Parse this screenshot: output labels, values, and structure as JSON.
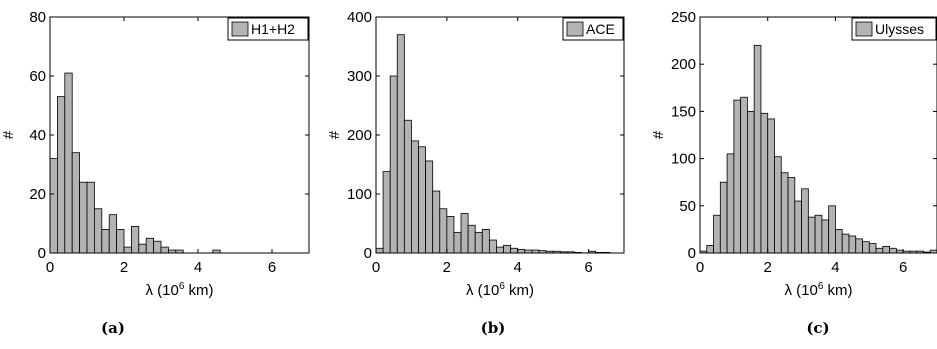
{
  "chart_data": [
    {
      "type": "bar",
      "caption": "(a)",
      "legend": "H1+H2",
      "ylabel": "#",
      "xlabel_prefix": "λ (10",
      "xlabel_sup": "6",
      "xlabel_suffix": " km)",
      "xlim": [
        0,
        7
      ],
      "ylim": [
        0,
        80
      ],
      "yticks": [
        "0",
        "20",
        "40",
        "60",
        "80"
      ],
      "xticks": [
        "0",
        "2",
        "4",
        "6"
      ],
      "bin_width": 0.2,
      "values": [
        32,
        53,
        61,
        34,
        24,
        24,
        15,
        8,
        13,
        8,
        2,
        9,
        3,
        5,
        4,
        2,
        1,
        1,
        0,
        0,
        0,
        0,
        1,
        0,
        0,
        0,
        0,
        0,
        0,
        0,
        0,
        0,
        0,
        0,
        0
      ]
    },
    {
      "type": "bar",
      "caption": "(b)",
      "legend": "ACE",
      "ylabel": "#",
      "xlabel_prefix": "λ (10",
      "xlabel_sup": "6",
      "xlabel_suffix": " km)",
      "xlim": [
        0,
        7
      ],
      "ylim": [
        0,
        400
      ],
      "yticks": [
        "0",
        "100",
        "200",
        "300",
        "400"
      ],
      "xticks": [
        "0",
        "2",
        "4",
        "6"
      ],
      "bin_width": 0.2,
      "values": [
        8,
        138,
        300,
        370,
        225,
        190,
        180,
        156,
        105,
        75,
        62,
        35,
        67,
        47,
        35,
        40,
        22,
        10,
        13,
        8,
        6,
        5,
        5,
        4,
        3,
        3,
        2,
        2,
        1,
        0,
        3,
        1,
        1,
        0,
        0
      ]
    },
    {
      "type": "bar",
      "caption": "(c)",
      "legend": "Ulysses",
      "ylabel": "#",
      "xlabel_prefix": "λ (10",
      "xlabel_sup": "6",
      "xlabel_suffix": " km)",
      "xlim": [
        0,
        7
      ],
      "ylim": [
        0,
        250
      ],
      "yticks": [
        "0",
        "50",
        "100",
        "150",
        "200",
        "250"
      ],
      "xticks": [
        "0",
        "2",
        "4",
        "6"
      ],
      "bin_width": 0.2,
      "values": [
        2,
        8,
        40,
        75,
        105,
        162,
        165,
        150,
        220,
        148,
        142,
        102,
        85,
        80,
        55,
        68,
        38,
        40,
        35,
        50,
        25,
        20,
        18,
        15,
        12,
        10,
        5,
        7,
        5,
        3,
        2,
        2,
        2,
        1,
        3
      ]
    }
  ]
}
